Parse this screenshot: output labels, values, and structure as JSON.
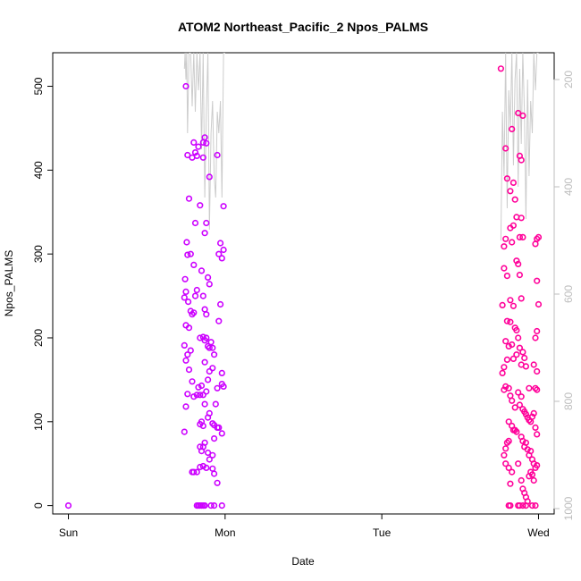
{
  "chart_data": {
    "type": "scatter",
    "title": "ATOM2 Northeast_Pacific_2 Npos_PALMS",
    "xlabel": "Date",
    "ylabel": "Npos_PALMS",
    "x_tick_labels": [
      "Sun",
      "Mon",
      "Tue",
      "Wed"
    ],
    "y_ticks": [
      0,
      100,
      200,
      300,
      400,
      500
    ],
    "ylim": [
      -10,
      540
    ],
    "xlim_days": [
      -0.1,
      3.1
    ],
    "right_axis": {
      "label": "",
      "reversed": true,
      "ticks": [
        200,
        400,
        600,
        800,
        1000
      ],
      "lim": [
        1010,
        150
      ],
      "line_color": "#cccccc"
    },
    "colors": {
      "early": "#cc00ff",
      "late": "#ff0099"
    },
    "grid": false,
    "series": [
      {
        "points": [
          [
            0.0,
            0
          ],
          [
            0.75,
            500
          ],
          [
            0.76,
            418
          ],
          [
            0.77,
            366
          ],
          [
            0.755,
            314
          ],
          [
            0.76,
            299
          ],
          [
            0.78,
            300
          ],
          [
            0.745,
            270
          ],
          [
            0.75,
            255
          ],
          [
            0.74,
            248
          ],
          [
            0.765,
            243
          ],
          [
            0.78,
            232
          ],
          [
            0.79,
            228
          ],
          [
            0.8,
            230
          ],
          [
            0.75,
            215
          ],
          [
            0.77,
            212
          ],
          [
            0.74,
            191
          ],
          [
            0.76,
            180
          ],
          [
            0.78,
            185
          ],
          [
            0.75,
            173
          ],
          [
            0.77,
            162
          ],
          [
            0.76,
            133
          ],
          [
            0.8,
            130
          ],
          [
            0.82,
            132
          ],
          [
            0.75,
            118
          ],
          [
            0.74,
            88
          ],
          [
            0.79,
            148
          ],
          [
            0.83,
            141
          ],
          [
            0.8,
            433
          ],
          [
            0.81,
            421
          ],
          [
            0.82,
            417
          ],
          [
            0.79,
            415
          ],
          [
            0.81,
            337
          ],
          [
            0.8,
            287
          ],
          [
            0.81,
            250
          ],
          [
            0.82,
            257
          ],
          [
            0.84,
            358
          ],
          [
            0.83,
            428
          ],
          [
            0.86,
            433
          ],
          [
            0.87,
            439
          ],
          [
            0.88,
            432
          ],
          [
            0.86,
            415
          ],
          [
            0.87,
            325
          ],
          [
            0.88,
            337
          ],
          [
            0.85,
            280
          ],
          [
            0.86,
            250
          ],
          [
            0.87,
            234
          ],
          [
            0.88,
            228
          ],
          [
            0.89,
            272
          ],
          [
            0.9,
            264
          ],
          [
            0.84,
            200
          ],
          [
            0.86,
            201
          ],
          [
            0.87,
            197
          ],
          [
            0.88,
            200
          ],
          [
            0.89,
            190
          ],
          [
            0.9,
            188
          ],
          [
            0.91,
            195
          ],
          [
            0.92,
            188
          ],
          [
            0.93,
            180
          ],
          [
            0.87,
            171
          ],
          [
            0.9,
            160
          ],
          [
            0.92,
            164
          ],
          [
            0.89,
            150
          ],
          [
            0.85,
            143
          ],
          [
            0.84,
            132
          ],
          [
            0.86,
            132
          ],
          [
            0.88,
            136
          ],
          [
            0.87,
            121
          ],
          [
            0.85,
            100
          ],
          [
            0.86,
            95
          ],
          [
            0.84,
            97
          ],
          [
            0.89,
            105
          ],
          [
            0.9,
            110
          ],
          [
            0.92,
            98
          ],
          [
            0.93,
            96
          ],
          [
            0.95,
            93
          ],
          [
            0.94,
            121
          ],
          [
            0.95,
            140
          ],
          [
            0.98,
            145
          ],
          [
            0.99,
            142
          ],
          [
            0.98,
            158
          ],
          [
            0.96,
            220
          ],
          [
            0.97,
            240
          ],
          [
            0.96,
            300
          ],
          [
            0.98,
            295
          ],
          [
            0.99,
            305
          ],
          [
            0.97,
            313
          ],
          [
            0.99,
            357
          ],
          [
            0.95,
            418
          ],
          [
            0.9,
            392
          ],
          [
            0.84,
            70
          ],
          [
            0.85,
            65
          ],
          [
            0.86,
            70
          ],
          [
            0.87,
            75
          ],
          [
            0.89,
            63
          ],
          [
            0.9,
            55
          ],
          [
            0.92,
            60
          ],
          [
            0.93,
            80
          ],
          [
            0.79,
            40
          ],
          [
            0.8,
            40
          ],
          [
            0.84,
            46
          ],
          [
            0.86,
            47
          ],
          [
            0.88,
            45
          ],
          [
            0.92,
            44
          ],
          [
            0.93,
            38
          ],
          [
            0.95,
            27
          ],
          [
            0.82,
            0
          ],
          [
            0.83,
            0
          ],
          [
            0.84,
            0
          ],
          [
            0.85,
            0
          ],
          [
            0.86,
            0
          ],
          [
            0.87,
            0
          ],
          [
            0.91,
            0
          ],
          [
            0.93,
            0
          ],
          [
            0.98,
            0
          ],
          [
            0.82,
            40
          ],
          [
            0.98,
            86
          ],
          [
            0.96,
            93
          ]
        ]
      },
      {
        "points": [
          [
            2.76,
            521
          ],
          [
            2.79,
            426
          ],
          [
            2.8,
            390
          ],
          [
            2.83,
            449
          ],
          [
            2.84,
            385
          ],
          [
            2.82,
            375
          ],
          [
            2.85,
            365
          ],
          [
            2.86,
            344
          ],
          [
            2.88,
            320
          ],
          [
            2.89,
            343
          ],
          [
            2.87,
            468
          ],
          [
            2.9,
            465
          ],
          [
            2.88,
            417
          ],
          [
            2.89,
            412
          ],
          [
            2.9,
            320
          ],
          [
            2.78,
            309
          ],
          [
            2.79,
            318
          ],
          [
            2.82,
            331
          ],
          [
            2.84,
            334
          ],
          [
            2.83,
            314
          ],
          [
            2.78,
            283
          ],
          [
            2.8,
            274
          ],
          [
            2.82,
            245
          ],
          [
            2.84,
            238
          ],
          [
            2.86,
            292
          ],
          [
            2.87,
            288
          ],
          [
            2.88,
            275
          ],
          [
            2.89,
            247
          ],
          [
            2.77,
            239
          ],
          [
            2.8,
            220
          ],
          [
            2.82,
            219
          ],
          [
            2.85,
            212
          ],
          [
            2.86,
            209
          ],
          [
            2.87,
            200
          ],
          [
            2.79,
            196
          ],
          [
            2.81,
            190
          ],
          [
            2.83,
            192
          ],
          [
            2.84,
            175
          ],
          [
            2.86,
            180
          ],
          [
            2.88,
            188
          ],
          [
            2.89,
            168
          ],
          [
            2.9,
            183
          ],
          [
            2.91,
            176
          ],
          [
            2.92,
            166
          ],
          [
            2.8,
            174
          ],
          [
            2.78,
            165
          ],
          [
            2.77,
            158
          ],
          [
            2.79,
            142
          ],
          [
            2.78,
            138
          ],
          [
            2.81,
            140
          ],
          [
            2.82,
            131
          ],
          [
            2.83,
            125
          ],
          [
            2.85,
            117
          ],
          [
            2.87,
            135
          ],
          [
            2.88,
            120
          ],
          [
            2.89,
            130
          ],
          [
            2.9,
            115
          ],
          [
            2.91,
            112
          ],
          [
            2.92,
            109
          ],
          [
            2.93,
            105
          ],
          [
            2.94,
            102
          ],
          [
            2.95,
            100
          ],
          [
            2.96,
            106
          ],
          [
            2.97,
            110
          ],
          [
            2.94,
            140
          ],
          [
            2.98,
            140
          ],
          [
            2.99,
            138
          ],
          [
            2.97,
            168
          ],
          [
            2.98,
            200
          ],
          [
            2.99,
            208
          ],
          [
            3.0,
            240
          ],
          [
            2.99,
            268
          ],
          [
            2.98,
            312
          ],
          [
            3.0,
            320
          ],
          [
            2.99,
            318
          ],
          [
            2.81,
            100
          ],
          [
            2.83,
            95
          ],
          [
            2.84,
            90
          ],
          [
            2.85,
            90
          ],
          [
            2.86,
            88
          ],
          [
            2.89,
            82
          ],
          [
            2.9,
            77
          ],
          [
            2.91,
            70
          ],
          [
            2.92,
            75
          ],
          [
            2.93,
            67
          ],
          [
            2.94,
            60
          ],
          [
            2.95,
            65
          ],
          [
            2.96,
            55
          ],
          [
            2.97,
            50
          ],
          [
            2.98,
            45
          ],
          [
            2.79,
            68
          ],
          [
            2.8,
            75
          ],
          [
            2.81,
            77
          ],
          [
            2.78,
            60
          ],
          [
            2.79,
            50
          ],
          [
            2.81,
            45
          ],
          [
            2.83,
            40
          ],
          [
            2.82,
            26
          ],
          [
            2.87,
            50
          ],
          [
            2.89,
            30
          ],
          [
            2.9,
            20
          ],
          [
            2.91,
            15
          ],
          [
            2.92,
            10
          ],
          [
            2.93,
            5
          ],
          [
            2.94,
            35
          ],
          [
            2.95,
            40
          ],
          [
            2.96,
            37
          ],
          [
            2.97,
            30
          ],
          [
            2.99,
            48
          ],
          [
            2.81,
            0
          ],
          [
            2.82,
            0
          ],
          [
            2.87,
            0
          ],
          [
            2.88,
            0
          ],
          [
            2.9,
            0
          ],
          [
            2.92,
            0
          ],
          [
            2.96,
            0
          ],
          [
            2.98,
            0
          ],
          [
            2.99,
            160
          ],
          [
            2.98,
            93
          ],
          [
            2.99,
            85
          ]
        ]
      }
    ],
    "secondary_line": [
      [
        0.74,
        180
      ],
      [
        0.745,
        150
      ],
      [
        0.75,
        200
      ],
      [
        0.755,
        150
      ],
      [
        0.76,
        300
      ],
      [
        0.77,
        150
      ],
      [
        0.78,
        150
      ],
      [
        0.79,
        250
      ],
      [
        0.8,
        150
      ],
      [
        0.81,
        260
      ],
      [
        0.82,
        150
      ],
      [
        0.83,
        220
      ],
      [
        0.84,
        150
      ],
      [
        0.85,
        330
      ],
      [
        0.86,
        150
      ],
      [
        0.87,
        420
      ],
      [
        0.88,
        260
      ],
      [
        0.89,
        150
      ],
      [
        0.9,
        480
      ],
      [
        0.91,
        300
      ],
      [
        0.92,
        240
      ],
      [
        0.93,
        380
      ],
      [
        0.94,
        420
      ],
      [
        0.95,
        260
      ],
      [
        0.96,
        300
      ],
      [
        0.97,
        240
      ],
      [
        0.98,
        420
      ],
      [
        0.99,
        150
      ],
      [
        1.0,
        150
      ],
      [
        2.76,
        500
      ],
      [
        2.77,
        260
      ],
      [
        2.78,
        380
      ],
      [
        2.79,
        150
      ],
      [
        2.8,
        440
      ],
      [
        2.81,
        220
      ],
      [
        2.82,
        290
      ],
      [
        2.83,
        150
      ],
      [
        2.84,
        360
      ],
      [
        2.85,
        200
      ],
      [
        2.86,
        150
      ],
      [
        2.87,
        400
      ],
      [
        2.88,
        180
      ],
      [
        2.89,
        320
      ],
      [
        2.9,
        150
      ],
      [
        2.91,
        260
      ],
      [
        2.92,
        460
      ],
      [
        2.93,
        200
      ],
      [
        2.94,
        380
      ],
      [
        2.95,
        240
      ],
      [
        2.96,
        300
      ],
      [
        2.97,
        150
      ],
      [
        2.98,
        220
      ],
      [
        2.99,
        150
      ],
      [
        3.0,
        150
      ]
    ]
  }
}
